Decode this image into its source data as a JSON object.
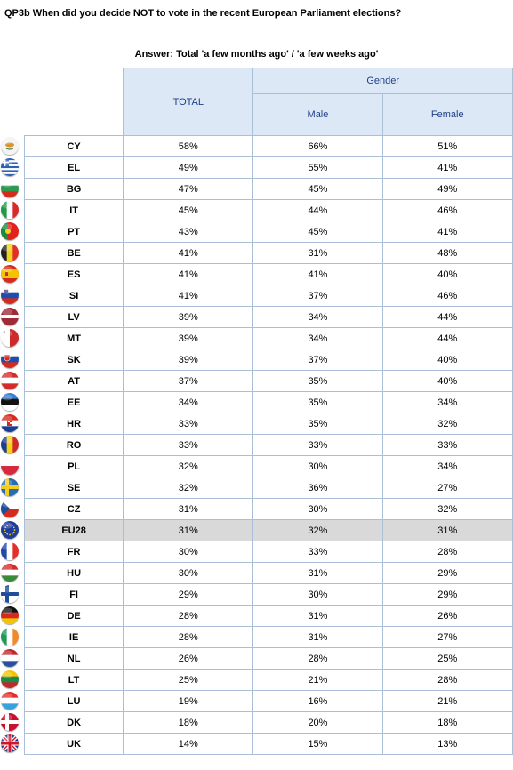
{
  "question": "QP3b When did you decide NOT to vote in the recent European Parliament elections?",
  "subtitle": "Answer: Total 'a few months ago' / 'a few weeks ago'",
  "headers": {
    "total": "TOTAL",
    "gender": "Gender",
    "male": "Male",
    "female": "Female"
  },
  "rows": [
    {
      "code": "CY",
      "total": "58%",
      "male": "66%",
      "female": "51%",
      "flag": "cy"
    },
    {
      "code": "EL",
      "total": "49%",
      "male": "55%",
      "female": "41%",
      "flag": "el"
    },
    {
      "code": "BG",
      "total": "47%",
      "male": "45%",
      "female": "49%",
      "flag": "bg"
    },
    {
      "code": "IT",
      "total": "45%",
      "male": "44%",
      "female": "46%",
      "flag": "it"
    },
    {
      "code": "PT",
      "total": "43%",
      "male": "45%",
      "female": "41%",
      "flag": "pt"
    },
    {
      "code": "BE",
      "total": "41%",
      "male": "31%",
      "female": "48%",
      "flag": "be"
    },
    {
      "code": "ES",
      "total": "41%",
      "male": "41%",
      "female": "40%",
      "flag": "es"
    },
    {
      "code": "SI",
      "total": "41%",
      "male": "37%",
      "female": "46%",
      "flag": "si"
    },
    {
      "code": "LV",
      "total": "39%",
      "male": "34%",
      "female": "44%",
      "flag": "lv"
    },
    {
      "code": "MT",
      "total": "39%",
      "male": "34%",
      "female": "44%",
      "flag": "mt"
    },
    {
      "code": "SK",
      "total": "39%",
      "male": "37%",
      "female": "40%",
      "flag": "sk"
    },
    {
      "code": "AT",
      "total": "37%",
      "male": "35%",
      "female": "40%",
      "flag": "at"
    },
    {
      "code": "EE",
      "total": "34%",
      "male": "35%",
      "female": "34%",
      "flag": "ee"
    },
    {
      "code": "HR",
      "total": "33%",
      "male": "35%",
      "female": "32%",
      "flag": "hr"
    },
    {
      "code": "RO",
      "total": "33%",
      "male": "33%",
      "female": "33%",
      "flag": "ro"
    },
    {
      "code": "PL",
      "total": "32%",
      "male": "30%",
      "female": "34%",
      "flag": "pl"
    },
    {
      "code": "SE",
      "total": "32%",
      "male": "36%",
      "female": "27%",
      "flag": "se"
    },
    {
      "code": "CZ",
      "total": "31%",
      "male": "30%",
      "female": "32%",
      "flag": "cz"
    },
    {
      "code": "EU28",
      "total": "31%",
      "male": "32%",
      "female": "31%",
      "flag": "eu",
      "highlight": true
    },
    {
      "code": "FR",
      "total": "30%",
      "male": "33%",
      "female": "28%",
      "flag": "fr"
    },
    {
      "code": "HU",
      "total": "30%",
      "male": "31%",
      "female": "29%",
      "flag": "hu"
    },
    {
      "code": "FI",
      "total": "29%",
      "male": "30%",
      "female": "29%",
      "flag": "fi"
    },
    {
      "code": "DE",
      "total": "28%",
      "male": "31%",
      "female": "26%",
      "flag": "de"
    },
    {
      "code": "IE",
      "total": "28%",
      "male": "31%",
      "female": "27%",
      "flag": "ie"
    },
    {
      "code": "NL",
      "total": "26%",
      "male": "28%",
      "female": "25%",
      "flag": "nl"
    },
    {
      "code": "LT",
      "total": "25%",
      "male": "21%",
      "female": "28%",
      "flag": "lt"
    },
    {
      "code": "LU",
      "total": "19%",
      "male": "16%",
      "female": "21%",
      "flag": "lu"
    },
    {
      "code": "DK",
      "total": "18%",
      "male": "20%",
      "female": "18%",
      "flag": "dk"
    },
    {
      "code": "UK",
      "total": "14%",
      "male": "15%",
      "female": "13%",
      "flag": "uk"
    }
  ]
}
